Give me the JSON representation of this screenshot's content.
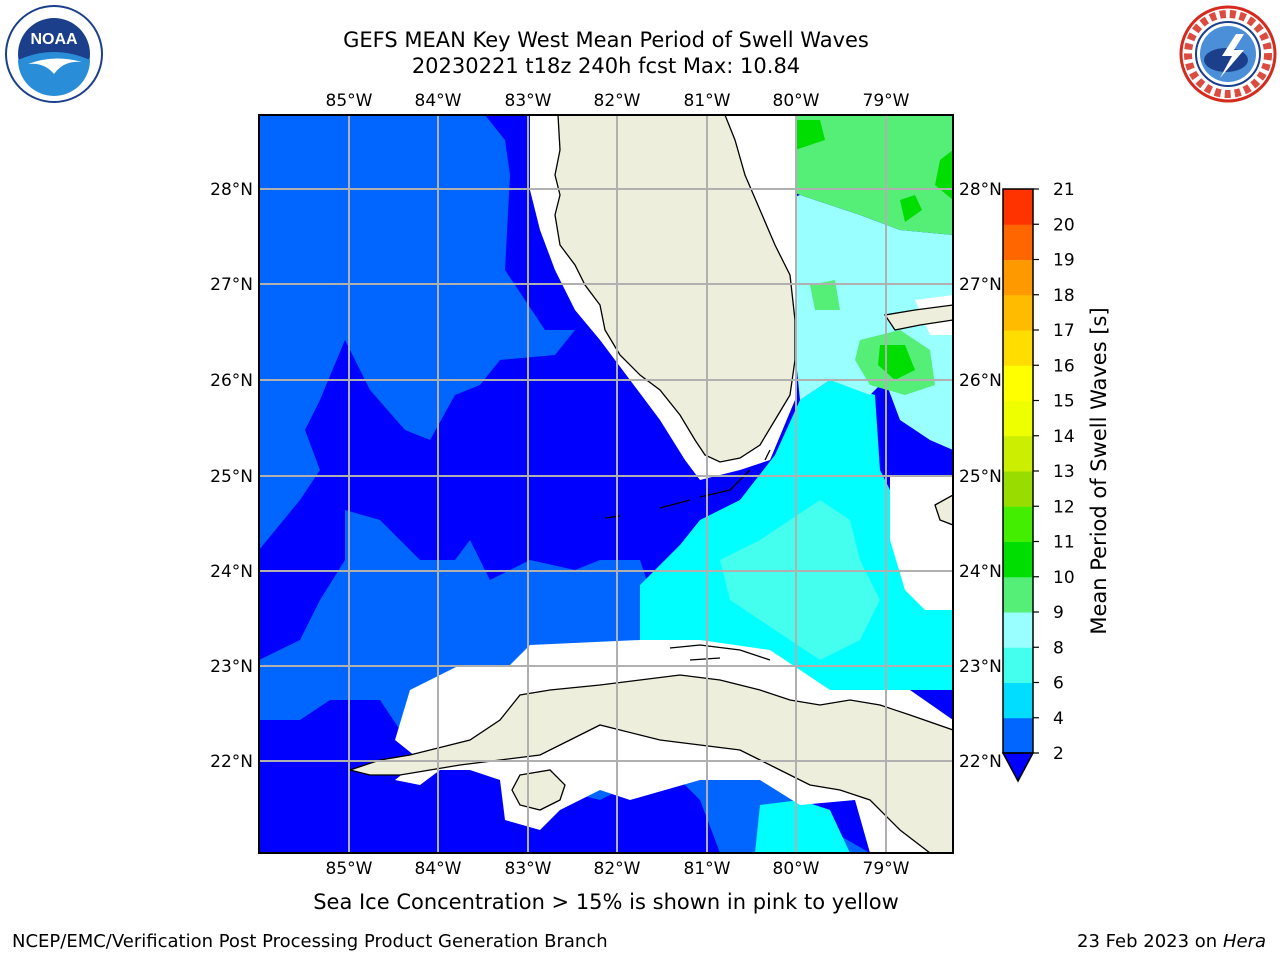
{
  "title": {
    "line1": "GEFS MEAN Key West Mean Period of Swell Waves",
    "line2": "20230221 t18z 240h fcst   Max: 10.84"
  },
  "map": {
    "lon_labels": [
      "85°W",
      "84°W",
      "83°W",
      "82°W",
      "81°W",
      "80°W",
      "79°W"
    ],
    "lat_labels": [
      "28°N",
      "27°N",
      "26°N",
      "25°N",
      "24°N",
      "23°N",
      "22°N"
    ],
    "land_color": "#eeeedd",
    "grid_color": "#b0b0b0"
  },
  "colorbar": {
    "label": "Mean Period of Swell Waves [s]",
    "ticks": [
      "2",
      "4",
      "6",
      "8",
      "9",
      "10",
      "11",
      "12",
      "13",
      "14",
      "15",
      "16",
      "17",
      "18",
      "19",
      "20",
      "21"
    ],
    "colors": [
      "#0066ff",
      "#00ddff",
      "#44ffee",
      "#99ffff",
      "#55ee77",
      "#00dd00",
      "#44ee00",
      "#99dd00",
      "#ccee00",
      "#eeff00",
      "#ffff00",
      "#ffdd00",
      "#ffbb00",
      "#ff9900",
      "#ff6600",
      "#ff3300"
    ]
  },
  "ice_note": "Sea Ice Concentration > 15% is shown in pink to yellow",
  "footer": {
    "left": "NCEP/EMC/Verification Post Processing Product Generation Branch",
    "date": "23 Feb 2023 on",
    "host": "Hera"
  },
  "logos": {
    "left": "NOAA",
    "right": "NATIONAL WEATHER SERVICE"
  }
}
